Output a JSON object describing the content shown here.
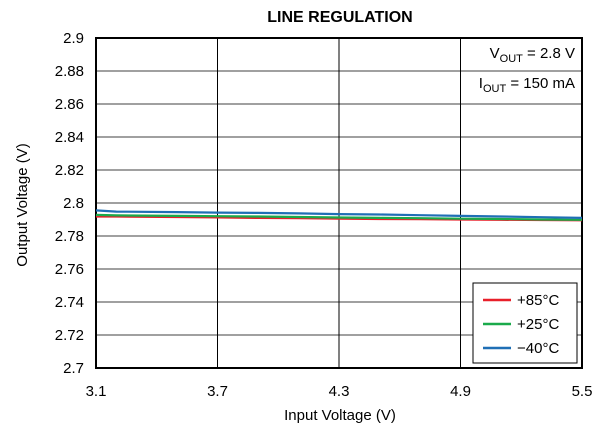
{
  "chart_data": {
    "type": "line",
    "title": "LINE REGULATION",
    "xlabel": "Input Voltage (V)",
    "ylabel": "Output Voltage (V)",
    "xlim": [
      3.1,
      5.5
    ],
    "ylim": [
      2.7,
      2.9
    ],
    "x_ticks": [
      "3.1",
      "3.7",
      "4.3",
      "4.9",
      "5.5"
    ],
    "y_ticks": [
      "2.9",
      "2.88",
      "2.86",
      "2.84",
      "2.82",
      "2.8",
      "2.78",
      "2.76",
      "2.74",
      "2.72",
      "2.7"
    ],
    "grid": true,
    "legend_position": "bottom-right",
    "annotations": {
      "vout_main": "V",
      "vout_sub": "OUT",
      "vout_value": " = 2.8 V",
      "iout_main": "I",
      "iout_sub": "OUT",
      "iout_value": " = 150 mA"
    },
    "series": [
      {
        "name": "+85°C",
        "color": "#e8202a",
        "x": [
          3.1,
          3.2,
          3.5,
          3.7,
          3.9,
          4.1,
          4.3,
          4.5,
          4.7,
          4.9,
          5.1,
          5.3,
          5.5
        ],
        "y": [
          2.7918,
          2.7918,
          2.7915,
          2.7913,
          2.791,
          2.7908,
          2.7905,
          2.7903,
          2.7902,
          2.79,
          2.7898,
          2.7897,
          2.7895
        ]
      },
      {
        "name": "+25°C",
        "color": "#1aaa4b",
        "x": [
          3.1,
          3.2,
          3.5,
          3.7,
          3.9,
          4.1,
          4.3,
          4.5,
          4.7,
          4.9,
          5.1,
          5.3,
          5.5
        ],
        "y": [
          2.7928,
          2.7925,
          2.7922,
          2.792,
          2.7918,
          2.7915,
          2.7912,
          2.791,
          2.7908,
          2.7905,
          2.7903,
          2.79,
          2.7898
        ]
      },
      {
        "name": "−40°C",
        "color": "#1f6fb5",
        "x": [
          3.1,
          3.2,
          3.5,
          3.7,
          3.9,
          4.1,
          4.3,
          4.5,
          4.7,
          4.9,
          5.1,
          5.3,
          5.5
        ],
        "y": [
          2.7955,
          2.7948,
          2.7945,
          2.7942,
          2.794,
          2.7937,
          2.7933,
          2.793,
          2.7926,
          2.7922,
          2.7918,
          2.7914,
          2.791
        ]
      }
    ]
  }
}
